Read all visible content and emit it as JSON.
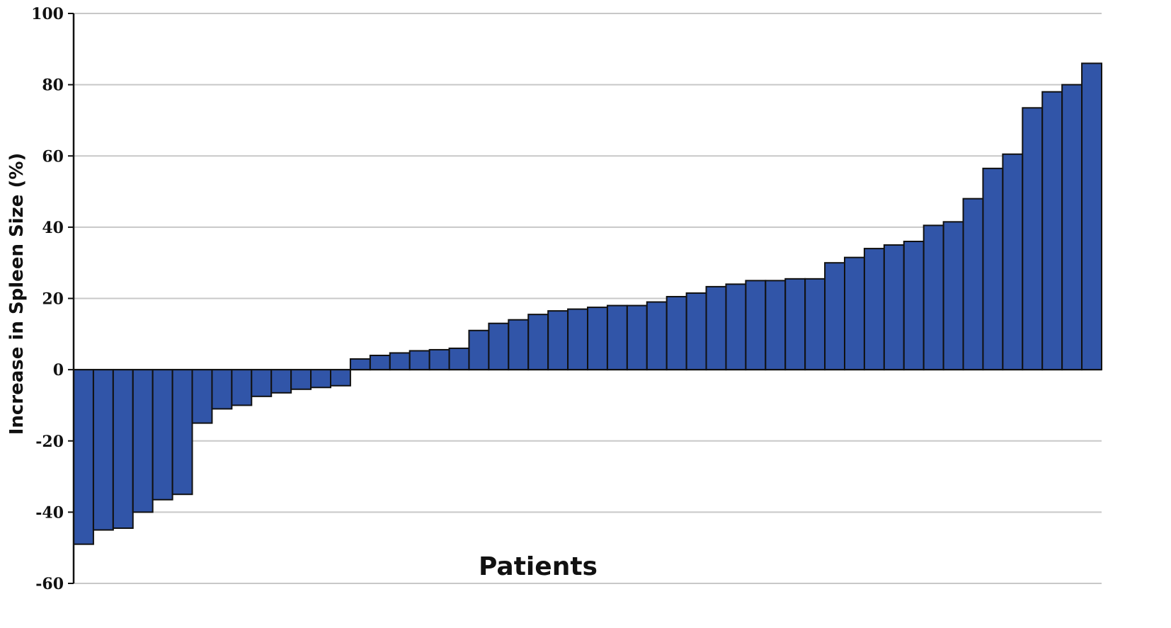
{
  "chart_data": {
    "type": "bar",
    "title": "",
    "xlabel": "Patients",
    "ylabel": "Increase in Spleen Size  (%)",
    "ylim": [
      -60,
      100
    ],
    "yticks": [
      "100",
      "80",
      "60",
      "40",
      "20",
      "0",
      "-20",
      "-40",
      "-60"
    ],
    "ytick_values": [
      100,
      80,
      60,
      40,
      20,
      0,
      -20,
      -40,
      -60
    ],
    "grid": "horizontal",
    "bar_color": "#3155a8",
    "bar_edge_color": "#111111",
    "grid_color": "#c8c8c8",
    "values": [
      -49,
      -45,
      -44.5,
      -40,
      -36.5,
      -35,
      -15,
      -11,
      -10,
      -7.5,
      -6.5,
      -5.5,
      -5,
      -4.5,
      3,
      4,
      4.7,
      5.3,
      5.6,
      6,
      11,
      13,
      14,
      15.5,
      16.5,
      17,
      17.5,
      18,
      18,
      19,
      20.5,
      21.5,
      23.3,
      24,
      25,
      25,
      25.5,
      25.5,
      30,
      31.5,
      34,
      35,
      36,
      40.5,
      41.5,
      48,
      56.5,
      60.5,
      73.5,
      78,
      80,
      86
    ]
  }
}
